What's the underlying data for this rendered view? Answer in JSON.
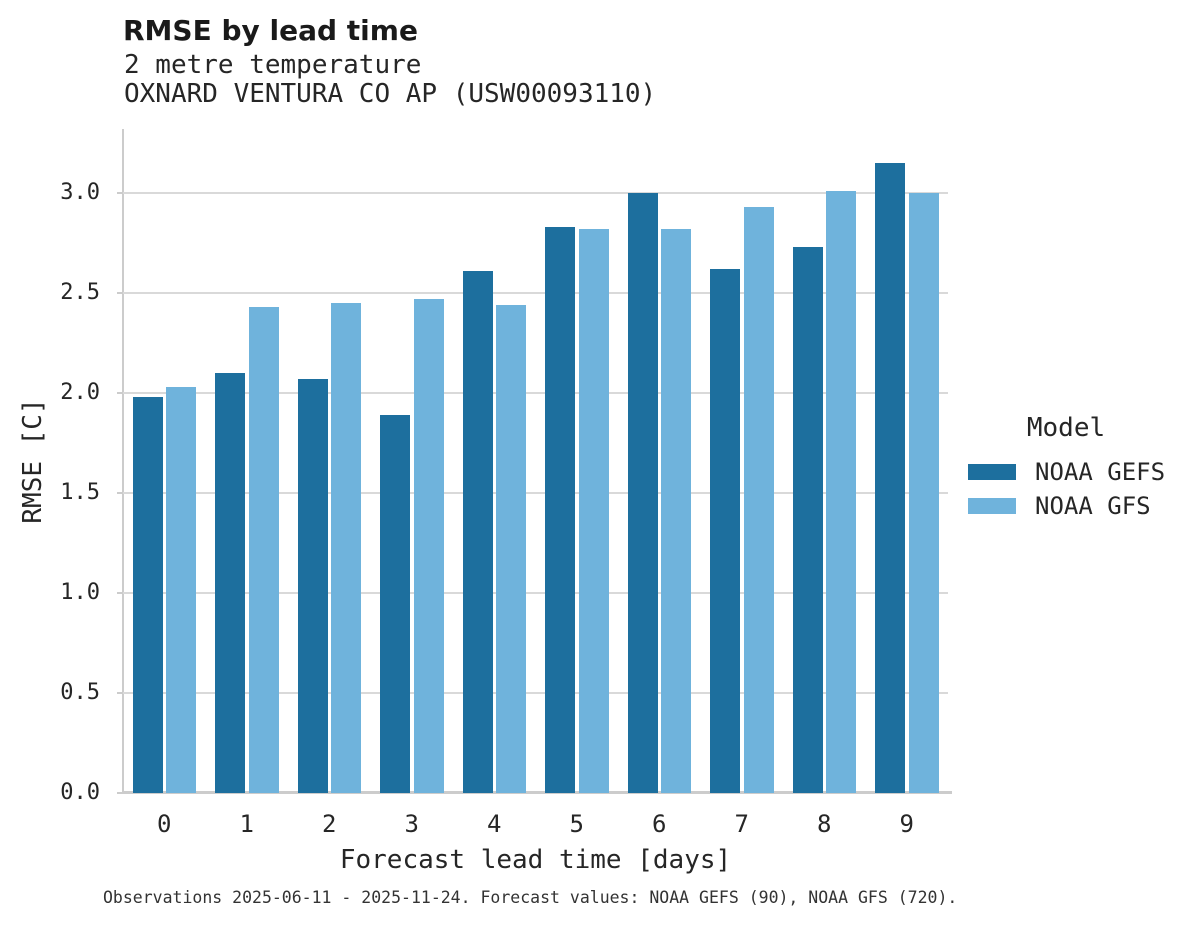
{
  "title": "RMSE by lead time",
  "subtitle_line1": "2 metre temperature",
  "subtitle_line2": "OXNARD VENTURA CO AP (USW00093110)",
  "footer": "Observations 2025-06-11 - 2025-11-24. Forecast values: NOAA GEFS (90), NOAA GFS (720).",
  "legend": {
    "title": "Model",
    "items": [
      {
        "label": "NOAA GEFS",
        "color": "#1d6f9e"
      },
      {
        "label": "NOAA GFS",
        "color": "#6fb3dc"
      }
    ]
  },
  "colors": {
    "dark_blue": "#1d6f9e",
    "light_blue": "#6fb3dc",
    "gridline": "#d9d9d9",
    "spine": "#cccccc",
    "text": "#262626"
  },
  "chart_data": {
    "type": "bar",
    "title": "RMSE by lead time",
    "subtitle": [
      "2 metre temperature",
      "OXNARD VENTURA CO AP (USW00093110)"
    ],
    "categories": [
      "0",
      "1",
      "2",
      "3",
      "4",
      "5",
      "6",
      "7",
      "8",
      "9"
    ],
    "series": [
      {
        "name": "NOAA GEFS",
        "color": "#1d6f9e",
        "values": [
          1.98,
          2.1,
          2.07,
          1.89,
          2.61,
          2.83,
          3.0,
          2.62,
          2.73,
          3.15
        ]
      },
      {
        "name": "NOAA GFS",
        "color": "#6fb3dc",
        "values": [
          2.03,
          2.43,
          2.45,
          2.47,
          2.44,
          2.82,
          2.82,
          2.93,
          3.01,
          3.0
        ]
      }
    ],
    "xlabel": "Forecast lead time [days]",
    "ylabel": "RMSE [C]",
    "ylim": [
      0,
      3.32
    ],
    "yticks": [
      0.0,
      0.5,
      1.0,
      1.5,
      2.0,
      2.5,
      3.0
    ],
    "grid": true,
    "legend_title": "Model",
    "legend_position": "right",
    "caption": "Observations 2025-06-11 - 2025-11-24. Forecast values: NOAA GEFS (90), NOAA GFS (720)."
  }
}
